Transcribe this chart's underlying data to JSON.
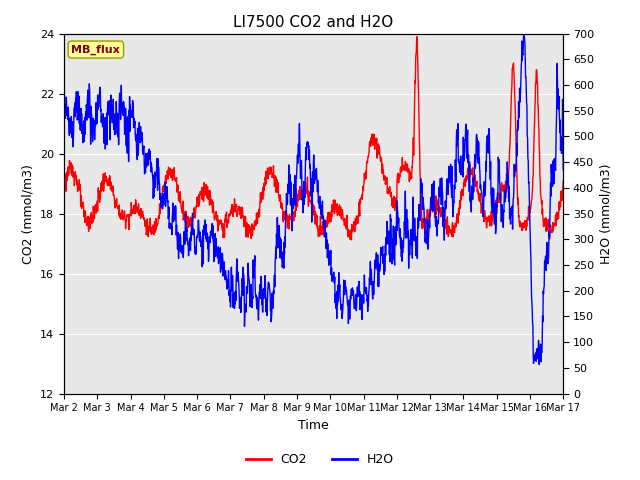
{
  "title": "LI7500 CO2 and H2O",
  "xlabel": "Time",
  "ylabel_left": "CO2 (mmol/m3)",
  "ylabel_right": "H2O (mmol/m3)",
  "ylim_left": [
    12,
    24
  ],
  "ylim_right": [
    0,
    700
  ],
  "yticks_left": [
    12,
    14,
    16,
    18,
    20,
    22,
    24
  ],
  "yticks_right": [
    0,
    50,
    100,
    150,
    200,
    250,
    300,
    350,
    400,
    450,
    500,
    550,
    600,
    650,
    700
  ],
  "xtick_labels": [
    "Mar 2",
    "Mar 3",
    "Mar 4",
    "Mar 5",
    "Mar 6",
    "Mar 7",
    "Mar 8",
    "Mar 9",
    "Mar 10",
    "Mar 11",
    "Mar 12",
    "Mar 13",
    "Mar 14",
    "Mar 15",
    "Mar 16",
    "Mar 17"
  ],
  "legend_label_co2": "CO2",
  "legend_label_h2o": "H2O",
  "annotation_text": "MB_flux",
  "co2_color": "#ff0000",
  "h2o_color": "#0000ff",
  "bg_color": "#e8e8e8",
  "annotation_bg": "#ffff99",
  "annotation_border": "#999900",
  "title_fontsize": 11,
  "axis_fontsize": 9,
  "tick_fontsize": 8,
  "legend_fontsize": 9,
  "linewidth": 1.0,
  "n_points": 1500
}
